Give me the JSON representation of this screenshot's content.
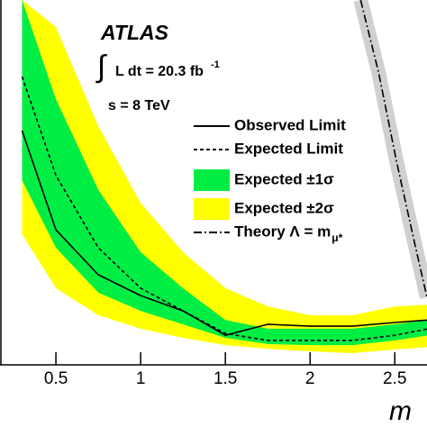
{
  "chart_data": {
    "type": "line",
    "title": "ATLAS",
    "annotations": {
      "integral": "∫",
      "lumi": "L dt = 20.3 fb",
      "lumi_exponent": "-1",
      "energy": "s = 8 TeV"
    },
    "x_label": "m",
    "theory_subscript": "μ*",
    "xlim": [
      0.17,
      2.69
    ],
    "ylim": [
      0,
      100
    ],
    "xticks": [
      0.5,
      1,
      1.5,
      2,
      2.5
    ],
    "x": [
      0.3,
      0.5,
      0.75,
      1,
      1.25,
      1.5,
      1.75,
      2,
      2.25,
      2.5,
      2.7
    ],
    "series": [
      {
        "name": "Observed Limit",
        "kind": "line",
        "color": "#000000",
        "dash": "none",
        "values": [
          64.2,
          37,
          24.7,
          19,
          14.8,
          8.1,
          11.1,
          10.6,
          10.6,
          11.6,
          12.3
        ]
      },
      {
        "name": "Expected Limit",
        "kind": "line",
        "color": "#000000",
        "dash": "4 3",
        "values": [
          79,
          51.9,
          32.1,
          21,
          14.8,
          8.6,
          6.7,
          6.7,
          6.7,
          8.1,
          9.9
        ]
      },
      {
        "name": "Expected ±1σ",
        "kind": "band",
        "color": "#00ee44",
        "upper": [
          100,
          72.8,
          48,
          30.9,
          21,
          12.3,
          9.9,
          9.9,
          9.9,
          11.1,
          12.3
        ],
        "lower": [
          50.6,
          32.1,
          19.8,
          14.8,
          11.1,
          7.4,
          5.7,
          5.4,
          5.4,
          6.7,
          8.1
        ]
      },
      {
        "name": "Expected ±2σ",
        "kind": "band",
        "color": "#ffff00",
        "upper": [
          100,
          92.6,
          65.4,
          44.4,
          30.9,
          21,
          16,
          13.6,
          13.6,
          16,
          16.5
        ],
        "lower": [
          35.8,
          21,
          13.6,
          9.9,
          7.4,
          5.4,
          4.4,
          3.7,
          3.2,
          4.2,
          4.9
        ]
      },
      {
        "name": "Theory  Λ = m",
        "kind": "theory",
        "color": "#000000",
        "dash": "9 3 2 3",
        "band_color": "#d0d0d0",
        "x": [
          2.298,
          2.404,
          2.511,
          2.617,
          2.69
        ],
        "values": [
          100,
          80.2,
          55.6,
          33.3,
          18.5
        ]
      }
    ]
  }
}
